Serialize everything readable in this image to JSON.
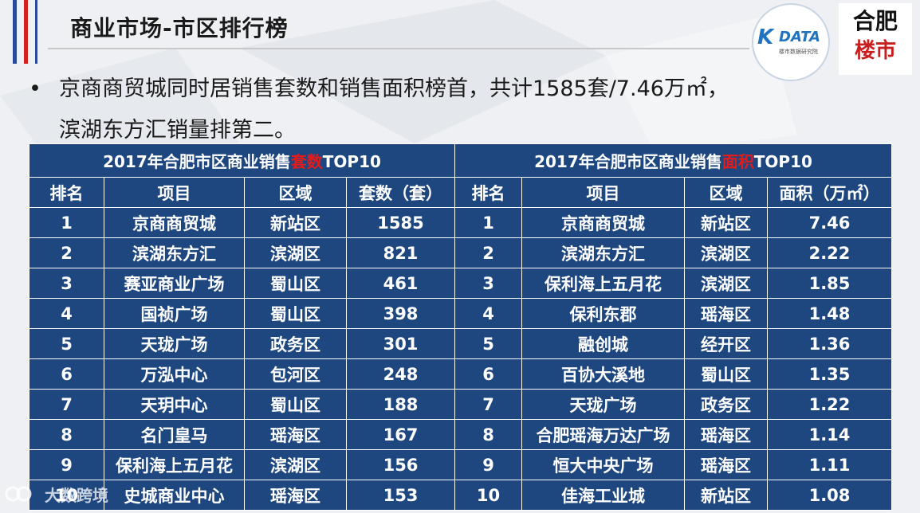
{
  "header": {
    "title": "商业市场-市区排行榜"
  },
  "logos": {
    "kdata_mark": "K",
    "kdata_text": "DATA",
    "kdata_sub": "楼市数据研究院",
    "hefei_line1": "合肥",
    "hefei_line2": "楼市"
  },
  "bullet": {
    "dot": "•",
    "line1": "京商商贸城同时居销售套数和销售面积榜首，共计1585套/7.46万㎡，",
    "line2": "滨湖东方汇销量排第二。"
  },
  "table_left": {
    "title_pre": "2017年合肥市区商业销售",
    "title_hl": "套数",
    "title_post": "TOP10",
    "headers": [
      "排名",
      "项目",
      "区域",
      "套数（套）"
    ],
    "rows": [
      [
        "1",
        "京商商贸城",
        "新站区",
        "1585"
      ],
      [
        "2",
        "滨湖东方汇",
        "滨湖区",
        "821"
      ],
      [
        "3",
        "赛亚商业广场",
        "蜀山区",
        "461"
      ],
      [
        "4",
        "国祯广场",
        "蜀山区",
        "398"
      ],
      [
        "5",
        "天珑广场",
        "政务区",
        "301"
      ],
      [
        "6",
        "万泓中心",
        "包河区",
        "248"
      ],
      [
        "7",
        "天玥中心",
        "蜀山区",
        "188"
      ],
      [
        "8",
        "名门皇马",
        "瑶海区",
        "167"
      ],
      [
        "9",
        "保利海上五月花",
        "滨湖区",
        "156"
      ],
      [
        "10",
        "史城商业中心",
        "瑶海区",
        "153"
      ]
    ]
  },
  "table_right": {
    "title_pre": "2017年合肥市区商业销售",
    "title_hl": "面积",
    "title_post": "TOP10",
    "headers": [
      "排名",
      "项目",
      "区域",
      "面积（万㎡）"
    ],
    "rows": [
      [
        "1",
        "京商商贸城",
        "新站区",
        "7.46"
      ],
      [
        "2",
        "滨湖东方汇",
        "滨湖区",
        "2.22"
      ],
      [
        "3",
        "保利海上五月花",
        "滨湖区",
        "1.85"
      ],
      [
        "4",
        "保利东郡",
        "瑶海区",
        "1.48"
      ],
      [
        "5",
        "融创城",
        "经开区",
        "1.36"
      ],
      [
        "6",
        "百协大溪地",
        "蜀山区",
        "1.35"
      ],
      [
        "7",
        "天珑广场",
        "政务区",
        "1.22"
      ],
      [
        "8",
        "合肥瑶海万达广场",
        "瑶海区",
        "1.14"
      ],
      [
        "9",
        "恒大中央广场",
        "瑶海区",
        "1.11"
      ],
      [
        "10",
        "佳海工业城",
        "新站区",
        "1.08"
      ]
    ]
  },
  "watermark": {
    "text": "大数跨境"
  },
  "colors": {
    "table_bg": "#1e477f",
    "highlight": "#e31b1b",
    "accent_red": "#d42020",
    "accent_blue": "#2a4a9c"
  }
}
